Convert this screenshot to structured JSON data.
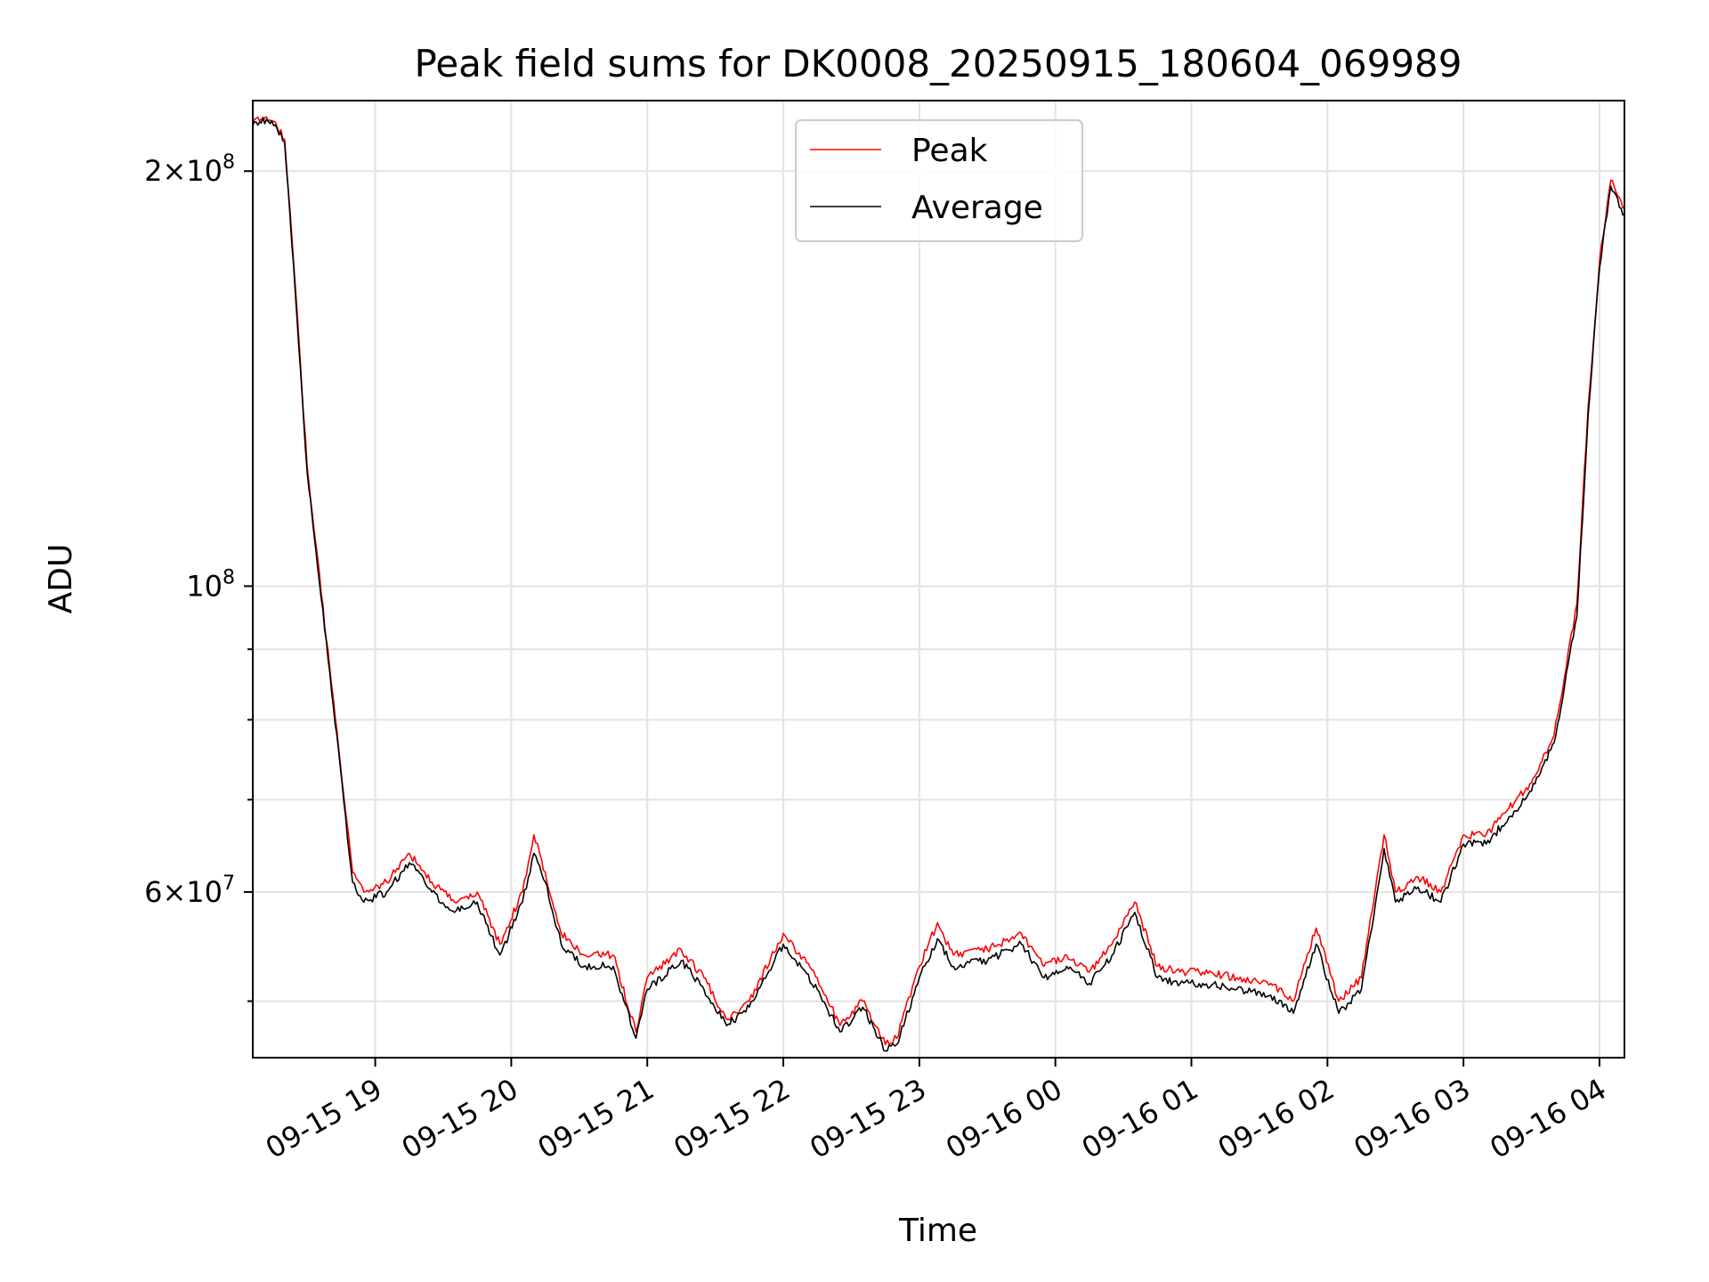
{
  "chart_data": {
    "type": "line",
    "title": "Peak field sums for DK0008_20250915_180604_069989",
    "xlabel": "Time",
    "ylabel": "ADU",
    "x_scale": "time",
    "y_scale": "log",
    "xlim": [
      "2025-09-15 18:06",
      "2025-09-16 04:11"
    ],
    "ylim": [
      45500000,
      225000000
    ],
    "grid": true,
    "legend_position": "top-center",
    "x_ticks": [
      {
        "label": "09-15 19",
        "t": "2025-09-15 19:00"
      },
      {
        "label": "09-15 20",
        "t": "2025-09-15 20:00"
      },
      {
        "label": "09-15 21",
        "t": "2025-09-15 21:00"
      },
      {
        "label": "09-15 22",
        "t": "2025-09-15 22:00"
      },
      {
        "label": "09-15 23",
        "t": "2025-09-15 23:00"
      },
      {
        "label": "09-16 00",
        "t": "2025-09-16 00:00"
      },
      {
        "label": "09-16 01",
        "t": "2025-09-16 01:00"
      },
      {
        "label": "09-16 02",
        "t": "2025-09-16 02:00"
      },
      {
        "label": "09-16 03",
        "t": "2025-09-16 03:00"
      },
      {
        "label": "09-16 04",
        "t": "2025-09-16 04:00"
      }
    ],
    "y_ticks_major": [
      {
        "value": 60000000,
        "mantissa": "6",
        "exponent": "7"
      },
      {
        "value": 100000000,
        "mantissa": "",
        "exponent": "8"
      },
      {
        "value": 200000000,
        "mantissa": "2",
        "exponent": "8"
      }
    ],
    "y_ticks_minor": [
      50000000,
      70000000,
      80000000,
      90000000
    ],
    "series": [
      {
        "name": "Peak",
        "color": "#ff0000",
        "x": [
          "2025-09-15 18:06",
          "2025-09-15 18:12",
          "2025-09-15 18:16",
          "2025-09-15 18:20",
          "2025-09-15 18:24",
          "2025-09-15 18:30",
          "2025-09-15 18:40",
          "2025-09-15 18:50",
          "2025-09-15 18:55",
          "2025-09-15 19:05",
          "2025-09-15 19:15",
          "2025-09-15 19:25",
          "2025-09-15 19:35",
          "2025-09-15 19:45",
          "2025-09-15 19:55",
          "2025-09-15 20:05",
          "2025-09-15 20:10",
          "2025-09-15 20:15",
          "2025-09-15 20:22",
          "2025-09-15 20:32",
          "2025-09-15 20:45",
          "2025-09-15 20:55",
          "2025-09-15 21:00",
          "2025-09-15 21:15",
          "2025-09-15 21:25",
          "2025-09-15 21:35",
          "2025-09-15 21:45",
          "2025-09-15 22:00",
          "2025-09-15 22:15",
          "2025-09-15 22:25",
          "2025-09-15 22:35",
          "2025-09-15 22:45",
          "2025-09-15 22:50",
          "2025-09-15 23:00",
          "2025-09-15 23:08",
          "2025-09-15 23:15",
          "2025-09-15 23:30",
          "2025-09-15 23:45",
          "2025-09-15 23:55",
          "2025-09-16 00:05",
          "2025-09-16 00:15",
          "2025-09-16 00:25",
          "2025-09-16 00:35",
          "2025-09-16 00:45",
          "2025-09-16 00:55",
          "2025-09-16 01:05",
          "2025-09-16 01:20",
          "2025-09-16 01:35",
          "2025-09-16 01:45",
          "2025-09-16 01:55",
          "2025-09-16 02:05",
          "2025-09-16 02:15",
          "2025-09-16 02:25",
          "2025-09-16 02:30",
          "2025-09-16 02:40",
          "2025-09-16 02:50",
          "2025-09-16 03:00",
          "2025-09-16 03:10",
          "2025-09-16 03:20",
          "2025-09-16 03:30",
          "2025-09-16 03:40",
          "2025-09-16 03:50",
          "2025-09-16 03:55",
          "2025-09-16 04:00",
          "2025-09-16 04:05",
          "2025-09-16 04:11"
        ],
        "y": [
          217000000,
          219000000,
          217000000,
          211000000,
          172000000,
          122000000,
          87000000,
          62000000,
          60000000,
          61000000,
          64000000,
          61000000,
          59000000,
          60000000,
          55000000,
          60000000,
          66000000,
          62000000,
          56000000,
          54000000,
          54000000,
          47500000,
          52000000,
          54500000,
          52000000,
          48500000,
          50000000,
          56000000,
          52000000,
          48000000,
          50000000,
          46500000,
          47000000,
          53000000,
          57000000,
          54000000,
          54500000,
          56000000,
          53000000,
          54000000,
          52500000,
          55000000,
          59000000,
          53000000,
          52500000,
          52500000,
          52000000,
          51500000,
          50000000,
          56500000,
          50000000,
          52000000,
          66000000,
          60000000,
          61500000,
          60000000,
          66000000,
          66000000,
          69000000,
          72000000,
          78000000,
          97000000,
          135000000,
          172000000,
          197000000,
          188000000
        ]
      },
      {
        "name": "Average",
        "color": "#000000",
        "x": [
          "2025-09-15 18:06",
          "2025-09-15 18:12",
          "2025-09-15 18:16",
          "2025-09-15 18:20",
          "2025-09-15 18:24",
          "2025-09-15 18:30",
          "2025-09-15 18:40",
          "2025-09-15 18:50",
          "2025-09-15 18:55",
          "2025-09-15 19:05",
          "2025-09-15 19:15",
          "2025-09-15 19:25",
          "2025-09-15 19:35",
          "2025-09-15 19:45",
          "2025-09-15 19:55",
          "2025-09-15 20:05",
          "2025-09-15 20:10",
          "2025-09-15 20:15",
          "2025-09-15 20:22",
          "2025-09-15 20:32",
          "2025-09-15 20:45",
          "2025-09-15 20:55",
          "2025-09-15 21:00",
          "2025-09-15 21:15",
          "2025-09-15 21:25",
          "2025-09-15 21:35",
          "2025-09-15 21:45",
          "2025-09-15 22:00",
          "2025-09-15 22:15",
          "2025-09-15 22:25",
          "2025-09-15 22:35",
          "2025-09-15 22:45",
          "2025-09-15 22:50",
          "2025-09-15 23:00",
          "2025-09-15 23:08",
          "2025-09-15 23:15",
          "2025-09-15 23:30",
          "2025-09-15 23:45",
          "2025-09-15 23:55",
          "2025-09-16 00:05",
          "2025-09-16 00:15",
          "2025-09-16 00:25",
          "2025-09-16 00:35",
          "2025-09-16 00:45",
          "2025-09-16 00:55",
          "2025-09-16 01:05",
          "2025-09-16 01:20",
          "2025-09-16 01:35",
          "2025-09-16 01:45",
          "2025-09-16 01:55",
          "2025-09-16 02:05",
          "2025-09-16 02:15",
          "2025-09-16 02:25",
          "2025-09-16 02:30",
          "2025-09-16 02:40",
          "2025-09-16 02:50",
          "2025-09-16 03:00",
          "2025-09-16 03:10",
          "2025-09-16 03:20",
          "2025-09-16 03:30",
          "2025-09-16 03:40",
          "2025-09-16 03:50",
          "2025-09-16 03:55",
          "2025-09-16 04:00",
          "2025-09-16 04:05",
          "2025-09-16 04:11"
        ],
        "y": [
          216000000,
          218000000,
          216000000,
          210000000,
          171000000,
          121000000,
          86500000,
          61000000,
          59000000,
          60000000,
          63000000,
          60000000,
          58000000,
          59000000,
          54000000,
          59000000,
          64000000,
          61000000,
          55000000,
          53000000,
          53000000,
          47000000,
          51000000,
          53500000,
          51000000,
          48000000,
          49500000,
          55000000,
          51000000,
          47500000,
          49500000,
          46000000,
          46500000,
          52000000,
          55500000,
          53000000,
          53500000,
          55000000,
          52000000,
          53000000,
          51500000,
          54000000,
          58000000,
          52000000,
          51500000,
          51500000,
          51000000,
          50500000,
          49000000,
          55000000,
          49000000,
          51000000,
          64500000,
          59000000,
          60500000,
          59000000,
          65000000,
          65000000,
          68000000,
          71000000,
          77000000,
          95000000,
          133000000,
          170000000,
          195000000,
          186000000
        ]
      }
    ]
  }
}
